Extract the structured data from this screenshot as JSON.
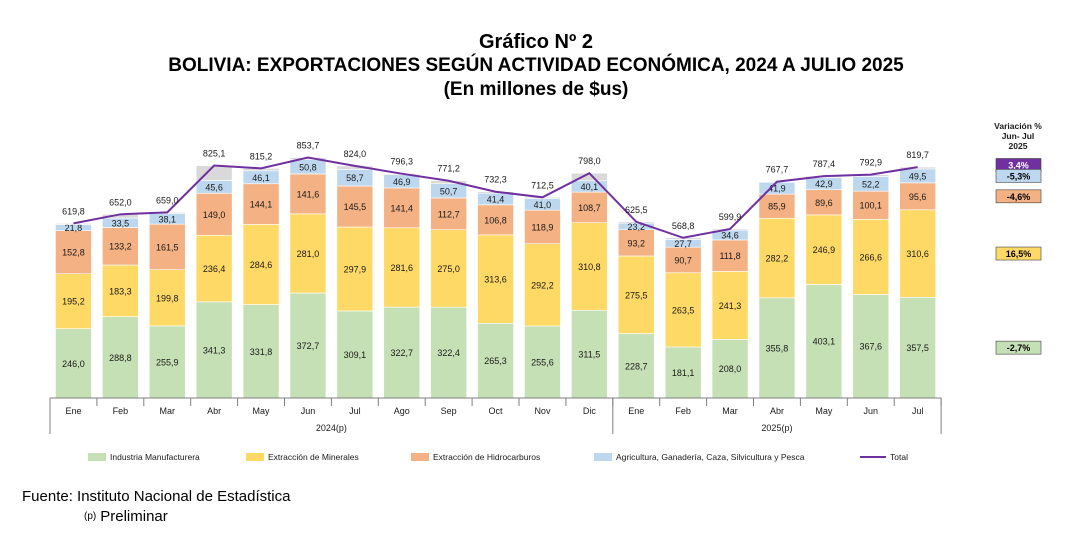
{
  "header": {
    "title": "Gráfico Nº 2",
    "subtitle": "BOLIVIA: EXPORTACIONES SEGÚN ACTIVIDAD ECONÓMICA, 2024 A JULIO 2025",
    "units": "(En millones de $us)"
  },
  "footer": {
    "source": "Fuente: Instituto Nacional de Estadística",
    "prelim_mark": "(p)",
    "prelim_text": "Preliminar"
  },
  "chart_data": {
    "type": "bar",
    "stacked": true,
    "categories": [
      "Ene",
      "Feb",
      "Mar",
      "Abr",
      "May",
      "Jun",
      "Jul",
      "Ago",
      "Sep",
      "Oct",
      "Nov",
      "Dic",
      "Ene",
      "Feb",
      "Mar",
      "Abr",
      "May",
      "Jun",
      "Jul"
    ],
    "year_groups": [
      {
        "label": "2024(p)",
        "count": 12
      },
      {
        "label": "2025(p)",
        "count": 7
      }
    ],
    "series": [
      {
        "name": "Industria Manufacturera",
        "color": "#c5e0b4",
        "values": [
          246.0,
          288.8,
          255.9,
          341.3,
          331.8,
          372.7,
          309.1,
          322.7,
          322.4,
          265.3,
          255.6,
          311.5,
          228.7,
          181.1,
          208.0,
          355.8,
          403.1,
          367.6,
          357.5
        ],
        "labels": [
          "246,0",
          "288,8",
          "255,9",
          "341,3",
          "331,8",
          "372,7",
          "309,1",
          "322,7",
          "322,4",
          "265,3",
          "255,6",
          "311,5",
          "228,7",
          "181,1",
          "208,0",
          "355,8",
          "403,1",
          "367,6",
          "357,5"
        ]
      },
      {
        "name": "Extracción de Minerales",
        "color": "#ffd966",
        "values": [
          195.2,
          183.3,
          199.8,
          236.4,
          284.6,
          281.0,
          297.9,
          281.6,
          275.0,
          313.6,
          292.2,
          310.8,
          275.5,
          263.5,
          241.3,
          282.2,
          246.9,
          266.6,
          310.6
        ],
        "labels": [
          "195,2",
          "183,3",
          "199,8",
          "236,4",
          "284,6",
          "281,0",
          "297,9",
          "281,6",
          "275,0",
          "313,6",
          "292,2",
          "310,8",
          "275,5",
          "263,5",
          "241,3",
          "282,2",
          "246,9",
          "266,6",
          "310,6"
        ]
      },
      {
        "name": "Extracción de Hidrocarburos",
        "color": "#f4b183",
        "values": [
          152.8,
          133.2,
          161.5,
          149.0,
          144.1,
          141.6,
          145.5,
          141.4,
          112.7,
          106.8,
          118.9,
          108.7,
          93.2,
          90.7,
          111.8,
          85.9,
          89.6,
          100.1,
          95.6
        ],
        "labels": [
          "152,8",
          "133,2",
          "161,5",
          "149,0",
          "144,1",
          "141,6",
          "145,5",
          "141,4",
          "112,7",
          "106,8",
          "118,9",
          "108,7",
          "93,2",
          "90,7",
          "111,8",
          "85,9",
          "89,6",
          "100,1",
          "95,6"
        ]
      },
      {
        "name": "Agricultura, Ganadería, Caza, Silvicultura y Pesca",
        "color": "#bdd7ee",
        "values": [
          21.8,
          33.5,
          38.1,
          45.6,
          46.1,
          50.8,
          58.7,
          46.9,
          50.7,
          41.4,
          41.0,
          40.1,
          23.2,
          27.7,
          34.6,
          41.9,
          42.9,
          52.2,
          49.5
        ],
        "labels": [
          "21,8",
          "33,5",
          "38,1",
          "45,6",
          "46,1",
          "50,8",
          "58,7",
          "46,9",
          "50,7",
          "41,4",
          "41,0",
          "40,1",
          "23,2",
          "27,7",
          "34,6",
          "41,9",
          "42,9",
          "52,2",
          "49,5"
        ]
      },
      {
        "name": "Total",
        "type": "line",
        "color": "#7030a0",
        "values": [
          619.8,
          652.0,
          659.0,
          825.1,
          815.2,
          853.7,
          824.0,
          796.3,
          771.2,
          732.3,
          712.5,
          798.0,
          625.5,
          568.8,
          599.9,
          767.7,
          787.4,
          792.9,
          819.7
        ],
        "labels": [
          "619,8",
          "652,0",
          "659,0",
          "825,1",
          "815,2",
          "853,7",
          "824,0",
          "796,3",
          "771,2",
          "732,3",
          "712,5",
          "798,0",
          "625,5",
          "568,8",
          "599,9",
          "767,7",
          "787,4",
          "792,9",
          "819,7"
        ]
      }
    ],
    "variation": {
      "title": [
        "Variación %",
        "Jun- Jul",
        "2025"
      ],
      "items": [
        {
          "series": "Total",
          "value": "3,4%",
          "fill": "#7030a0",
          "text_color": "#ffffff"
        },
        {
          "series": "Agricultura, Ganadería, Caza, Silvicultura y Pesca",
          "value": "-5,3%",
          "fill": "#bdd7ee",
          "text_color": "#000000"
        },
        {
          "series": "Extracción de Hidrocarburos",
          "value": "-4,6%",
          "fill": "#f4b183",
          "text_color": "#000000"
        },
        {
          "series": "Extracción de Minerales",
          "value": "16,5%",
          "fill": "#ffd966",
          "text_color": "#000000"
        },
        {
          "series": "Industria Manufacturera",
          "value": "-2,7%",
          "fill": "#c5e0b4",
          "text_color": "#000000"
        }
      ]
    },
    "ylim": [
      0,
      900
    ],
    "grid": false,
    "legend_position": "bottom"
  }
}
